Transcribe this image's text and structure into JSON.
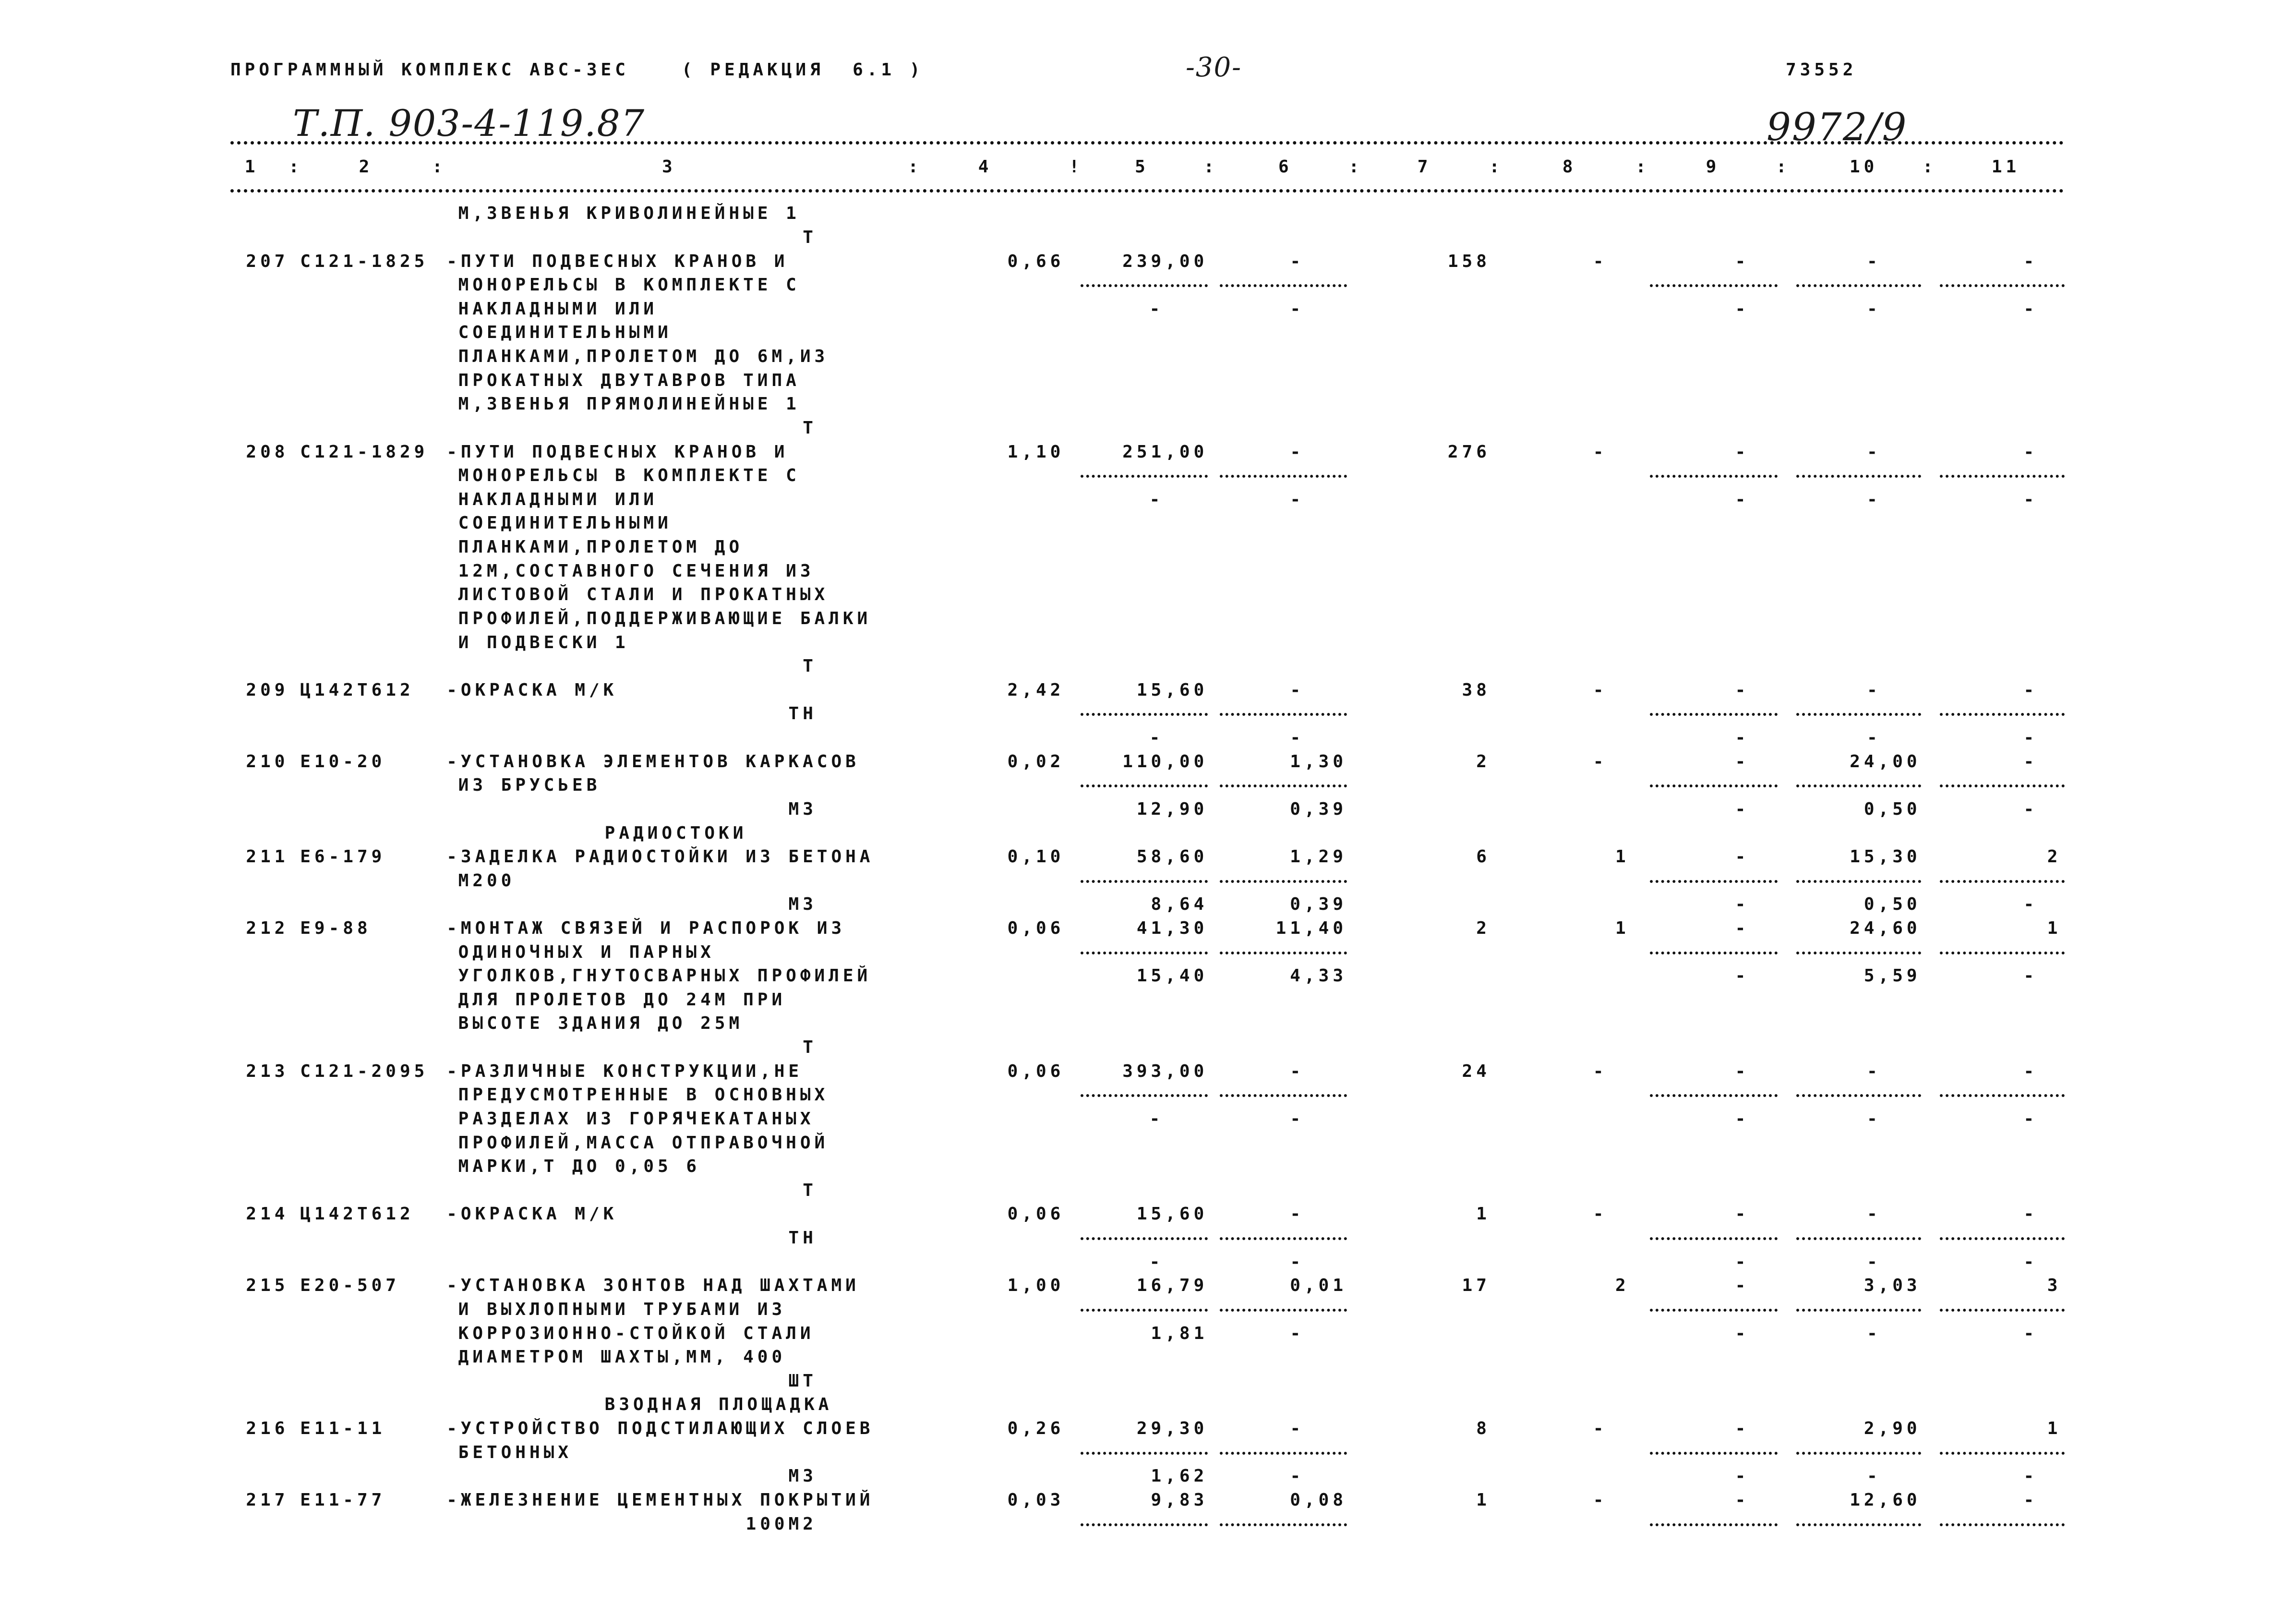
{
  "header": {
    "program": "ПРОГРАММНЫЙ КОМПЛЕКС АВС-3ЕС",
    "edition": "( РЕДАКЦИЯ  6.1 )",
    "page_number": "-30-",
    "doc_code": "73552",
    "project": "Т.П. 903-4-119.87",
    "archive_no": "9972/9"
  },
  "columns": {
    "labels": [
      "1",
      "2",
      "3",
      "4",
      "5",
      "6",
      "7",
      "8",
      "9",
      "10",
      "11"
    ],
    "separators": [
      ":",
      ":",
      ":",
      "!",
      ":",
      ":",
      ":",
      ":",
      ":",
      ":"
    ]
  },
  "entries": [
    {
      "text": [
        "М,ЗВЕНЬЯ КРИВОЛИНЕЙНЫЕ 1"
      ],
      "unit": "Т"
    },
    {
      "no": "207",
      "code": "С121-1825",
      "text": [
        "-ПУТИ ПОДВЕСНЫХ КРАНОВ И",
        "МОНОРЕЛЬСЫ В КОМПЛЕКТЕ С",
        "НАКЛАДНЫМИ ИЛИ",
        "СОЕДИНИТЕЛЬНЫМИ",
        "ПЛАНКАМИ,ПРОЛЕТОМ ДО 6М,ИЗ",
        "ПРОКАТНЫХ ДВУТАВРОВ ТИПА",
        "М,ЗВЕНЬЯ ПРЯМОЛИНЕЙНЫЕ 1"
      ],
      "unit": "Т",
      "c4": "0,66",
      "c5": [
        "239,00",
        "-"
      ],
      "c6": [
        "-",
        "-"
      ],
      "c7": "158",
      "c8": "-",
      "c9": [
        "-",
        "-"
      ],
      "c10": [
        "-",
        "-"
      ],
      "c11": [
        "-",
        "-"
      ]
    },
    {
      "no": "208",
      "code": "С121-1829",
      "text": [
        "-ПУТИ ПОДВЕСНЫХ КРАНОВ И",
        "МОНОРЕЛЬСЫ В КОМПЛЕКТЕ С",
        "НАКЛАДНЫМИ ИЛИ",
        "СОЕДИНИТЕЛЬНЫМИ",
        "ПЛАНКАМИ,ПРОЛЕТОМ ДО",
        "12М,СОСТАВНОГО СЕЧЕНИЯ ИЗ",
        "ЛИСТОВОЙ СТАЛИ И ПРОКАТНЫХ",
        "ПРОФИЛЕЙ,ПОДДЕРЖИВАЮЩИЕ БАЛКИ",
        "И ПОДВЕСКИ 1"
      ],
      "unit": "Т",
      "c4": "1,10",
      "c5": [
        "251,00",
        "-"
      ],
      "c6": [
        "-",
        "-"
      ],
      "c7": "276",
      "c8": "-",
      "c9": [
        "-",
        "-"
      ],
      "c10": [
        "-",
        "-"
      ],
      "c11": [
        "-",
        "-"
      ]
    },
    {
      "no": "209",
      "code": "Ц142Т612",
      "text": [
        "-ОКРАСКА М/К"
      ],
      "unit": "ТН",
      "c4": "2,42",
      "c5": [
        "15,60",
        "-"
      ],
      "c6": [
        "-",
        "-"
      ],
      "c7": "38",
      "c8": "-",
      "c9": [
        "-",
        "-"
      ],
      "c10": [
        "-",
        "-"
      ],
      "c11": [
        "-",
        "-"
      ]
    },
    {
      "no": "210",
      "code": "Е10-20",
      "text": [
        "-УСТАНОВКА ЭЛЕМЕНТОВ КАРКАСОВ",
        "ИЗ БРУСЬЕВ"
      ],
      "unit": "М3",
      "c4": "0,02",
      "c5": [
        "110,00",
        "12,90"
      ],
      "c6": [
        "1,30",
        "0,39"
      ],
      "c7": "2",
      "c8": "-",
      "c9": [
        "-",
        "-"
      ],
      "c10": [
        "24,00",
        "0,50"
      ],
      "c11": [
        "-",
        "-"
      ]
    },
    {
      "section": "РАДИОСТОКИ",
      "no": "211",
      "code": "Е6-179",
      "text": [
        "-ЗАДЕЛКА РАДИОСТОЙКИ ИЗ БЕТОНА",
        "М200"
      ],
      "unit": "М3",
      "c4": "0,10",
      "c5": [
        "58,60",
        "8,64"
      ],
      "c6": [
        "1,29",
        "0,39"
      ],
      "c7": "6",
      "c8": "1",
      "c9": [
        "-",
        "-"
      ],
      "c10": [
        "15,30",
        "0,50"
      ],
      "c11": [
        "2",
        "-"
      ]
    },
    {
      "no": "212",
      "code": "Е9-88",
      "text": [
        "-МОНТАЖ СВЯЗЕЙ И РАСПОРОК ИЗ",
        "ОДИНОЧНЫХ И ПАРНЫХ",
        "УГОЛКОВ,ГНУТОСВАРНЫХ ПРОФИЛЕЙ",
        "ДЛЯ ПРОЛЕТОВ ДО 24М ПРИ",
        "ВЫСОТЕ ЗДАНИЯ ДО 25М"
      ],
      "unit": "Т",
      "c4": "0,06",
      "c5": [
        "41,30",
        "15,40"
      ],
      "c6": [
        "11,40",
        "4,33"
      ],
      "c7": "2",
      "c8": "1",
      "c9": [
        "-",
        "-"
      ],
      "c10": [
        "24,60",
        "5,59"
      ],
      "c11": [
        "1",
        "-"
      ]
    },
    {
      "no": "213",
      "code": "С121-2095",
      "text": [
        "-РАЗЛИЧНЫЕ КОНСТРУКЦИИ,НЕ",
        "ПРЕДУСМОТРЕННЫЕ В ОСНОВНЫХ",
        "РАЗДЕЛАХ ИЗ ГОРЯЧЕКАТАНЫХ",
        "ПРОФИЛЕЙ,МАССА ОТПРАВОЧНОЙ",
        "МАРКИ,Т ДО 0,05 6"
      ],
      "unit": "Т",
      "c4": "0,06",
      "c5": [
        "393,00",
        "-"
      ],
      "c6": [
        "-",
        "-"
      ],
      "c7": "24",
      "c8": "-",
      "c9": [
        "-",
        "-"
      ],
      "c10": [
        "-",
        "-"
      ],
      "c11": [
        "-",
        "-"
      ]
    },
    {
      "no": "214",
      "code": "Ц142Т612",
      "text": [
        "-ОКРАСКА М/К"
      ],
      "unit": "ТН",
      "c4": "0,06",
      "c5": [
        "15,60",
        "-"
      ],
      "c6": [
        "-",
        "-"
      ],
      "c7": "1",
      "c8": "-",
      "c9": [
        "-",
        "-"
      ],
      "c10": [
        "-",
        "-"
      ],
      "c11": [
        "-",
        "-"
      ]
    },
    {
      "no": "215",
      "code": "Е20-507",
      "text": [
        "-УСТАНОВКА ЗОНТОВ НАД ШАХТАМИ",
        "И ВЫХЛОПНЫМИ ТРУБАМИ ИЗ",
        "КОРРОЗИОННО-СТОЙКОЙ СТАЛИ",
        "ДИАМЕТРОМ ШАХТЫ,ММ, 400"
      ],
      "unit": "ШТ",
      "c4": "1,00",
      "c5": [
        "16,79",
        "1,81"
      ],
      "c6": [
        "0,01",
        "-"
      ],
      "c7": "17",
      "c8": "2",
      "c9": [
        "-",
        "-"
      ],
      "c10": [
        "3,03",
        "-"
      ],
      "c11": [
        "3",
        "-"
      ]
    },
    {
      "section": "ВЗОДНАЯ ПЛОЩАДКА",
      "no": "216",
      "code": "Е11-11",
      "text": [
        "-УСТРОЙСТВО ПОДСТИЛАЮЩИХ СЛОЕВ",
        "БЕТОННЫХ"
      ],
      "unit": "М3",
      "c4": "0,26",
      "c5": [
        "29,30",
        "1,62"
      ],
      "c6": [
        "-",
        "-"
      ],
      "c7": "8",
      "c8": "-",
      "c9": [
        "-",
        "-"
      ],
      "c10": [
        "2,90",
        "-"
      ],
      "c11": [
        "1",
        "-"
      ]
    },
    {
      "no": "217",
      "code": "Е11-77",
      "text": [
        "-ЖЕЛЕЗНЕНИЕ ЦЕМЕНТНЫХ ПОКРЫТИЙ"
      ],
      "unit": "100М2",
      "c4": "0,03",
      "c5": [
        "9,83"
      ],
      "c6": [
        "0,08"
      ],
      "c7": "1",
      "c8": "-",
      "c9": [
        "-"
      ],
      "c10": [
        "12,60"
      ],
      "c11": [
        "-"
      ]
    }
  ]
}
